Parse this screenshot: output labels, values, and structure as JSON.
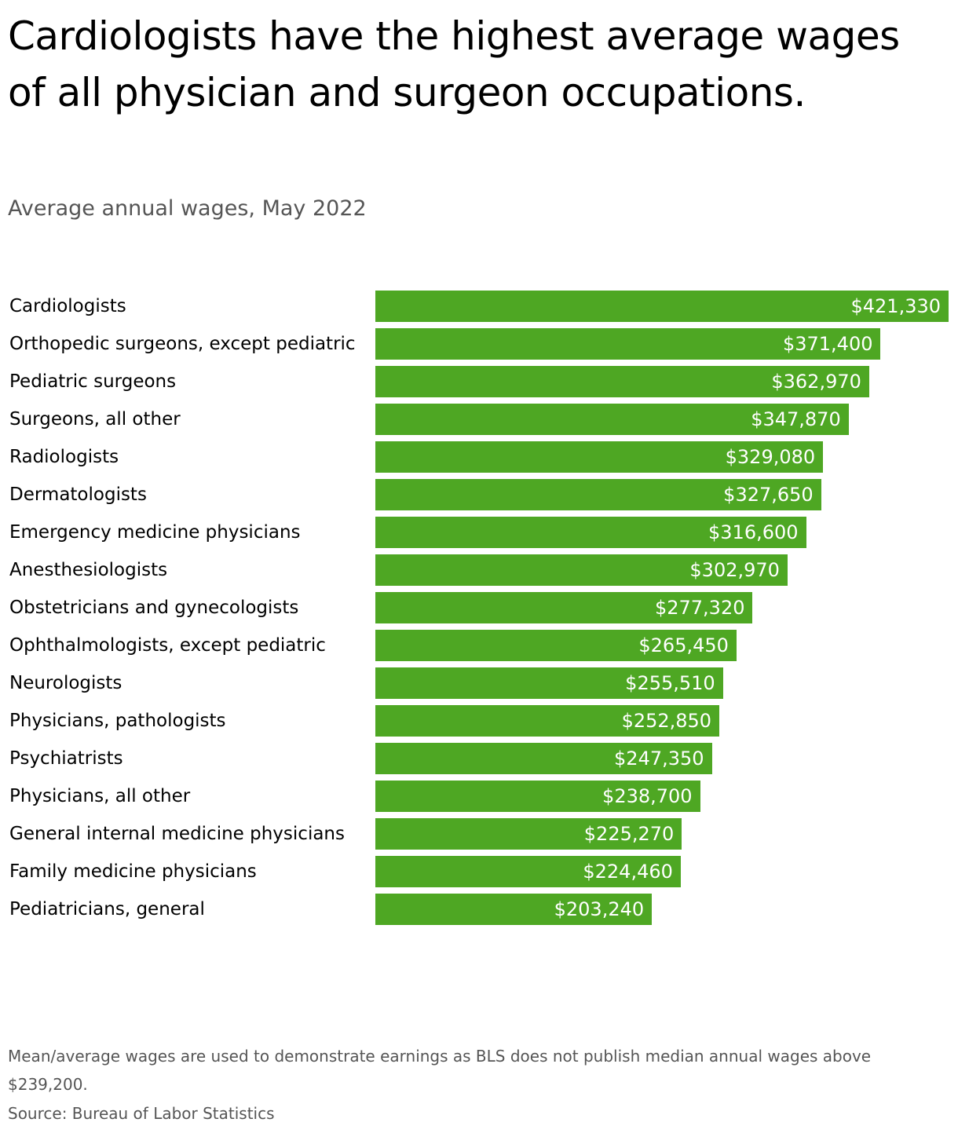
{
  "chart_data": {
    "type": "bar",
    "orientation": "horizontal",
    "title": "Cardiologists have the highest average wages of all physician and surgeon occupations.",
    "subtitle": "Average annual wages, May 2022",
    "categories": [
      "Cardiologists",
      "Orthopedic surgeons, except pediatric",
      "Pediatric surgeons",
      "Surgeons, all other",
      "Radiologists",
      "Dermatologists",
      "Emergency medicine physicians",
      "Anesthesiologists",
      "Obstetricians and gynecologists",
      "Ophthalmologists, except pediatric",
      "Neurologists",
      "Physicians, pathologists",
      "Psychiatrists",
      "Physicians, all other",
      "General internal medicine physicians",
      "Family medicine physicians",
      "Pediatricians, general"
    ],
    "values": [
      421330,
      371400,
      362970,
      347870,
      329080,
      327650,
      316600,
      302970,
      277320,
      265450,
      255510,
      252850,
      247350,
      238700,
      225270,
      224460,
      203240
    ],
    "value_labels": [
      "$421,330",
      "$371,400",
      "$362,970",
      "$347,870",
      "$329,080",
      "$327,650",
      "$316,600",
      "$302,970",
      "$277,320",
      "$265,450",
      "$255,510",
      "$252,850",
      "$247,350",
      "$238,700",
      "$225,270",
      "$224,460",
      "$203,240"
    ],
    "color": "#4ea723",
    "xlim": [
      0,
      421330
    ],
    "note": "Mean/average wages are used to demonstrate earnings as BLS does not publish median annual wages above $239,200.",
    "source": "Source: Bureau of Labor Statistics"
  }
}
